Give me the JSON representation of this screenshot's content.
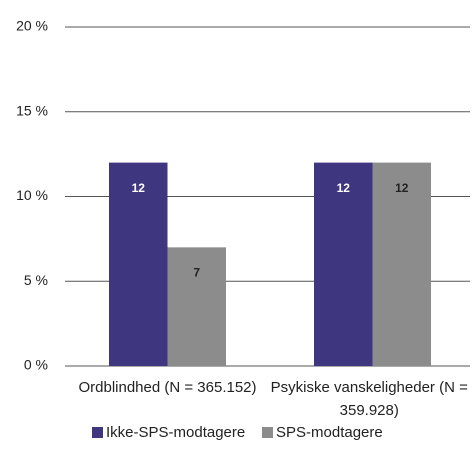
{
  "chart_data": {
    "type": "bar",
    "categories": [
      "Ordblindhed (N = 365.152)",
      "Psykiske vanskeligheder (N = 359.928)"
    ],
    "series": [
      {
        "name": "Ikke-SPS-modtagere",
        "color": "#3f3680",
        "values": [
          12,
          12
        ]
      },
      {
        "name": "SPS-modtagere",
        "color": "#8c8c8c",
        "values": [
          7,
          12
        ]
      }
    ],
    "ylim": [
      0,
      20
    ],
    "yticks": [
      {
        "value": 0,
        "label": "0 %"
      },
      {
        "value": 5,
        "label": "5 %"
      },
      {
        "value": 10,
        "label": "10 %"
      },
      {
        "value": 15,
        "label": "15 %"
      },
      {
        "value": 20,
        "label": "20 %"
      }
    ],
    "grid": true,
    "legend": "bottom"
  }
}
